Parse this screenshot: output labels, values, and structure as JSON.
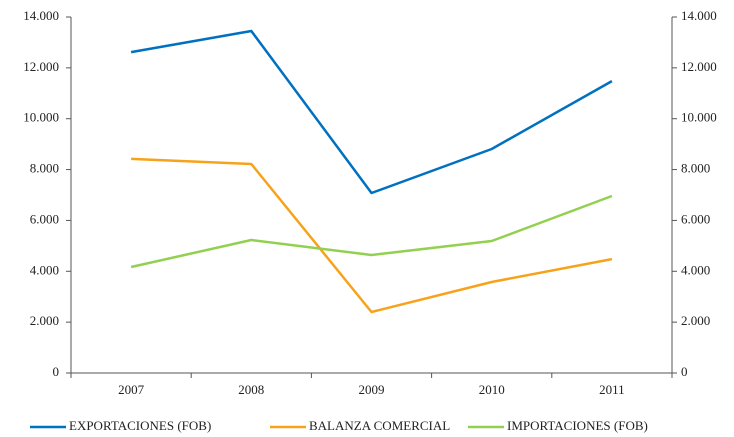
{
  "chart_data": {
    "type": "line",
    "categories": [
      "2007",
      "2008",
      "2009",
      "2010",
      "2011"
    ],
    "series": [
      {
        "name": "EXPORTACIONES (FOB)",
        "color": "#0070c0",
        "values": [
          12620,
          13450,
          7080,
          8810,
          11480
        ]
      },
      {
        "name": "BALANZA COMERCIAL",
        "color": "#f7a21b",
        "values": [
          8420,
          8220,
          2400,
          3580,
          4480
        ]
      },
      {
        "name": "IMPORTACIONES (FOB)",
        "color": "#92d050",
        "values": [
          4170,
          5230,
          4640,
          5190,
          6960
        ]
      }
    ],
    "ylim": [
      0,
      14000
    ],
    "yticks": [
      0,
      {
        "value": 2000,
        "label": "2.000"
      },
      {
        "value": 4000,
        "label": "4.000"
      },
      {
        "value": 6000,
        "label": "6.000"
      },
      {
        "value": 8000,
        "label": "8.000"
      },
      {
        "value": 10000,
        "label": "10.000"
      },
      {
        "value": 12000,
        "label": "12.000"
      },
      {
        "value": 14000,
        "label": "14.000"
      }
    ],
    "y2lim": [
      0,
      14000
    ],
    "y2ticks": [
      0,
      {
        "value": 2000,
        "label": "2.000"
      },
      {
        "value": 4000,
        "label": "4.000"
      },
      {
        "value": 6000,
        "label": "6.000"
      },
      {
        "value": 8000,
        "label": "8.000"
      },
      {
        "value": 10000,
        "label": "10.000"
      },
      {
        "value": 12000,
        "label": "12.000"
      },
      {
        "value": 14000,
        "label": "14.000"
      }
    ],
    "grid": false,
    "legend": "bottom"
  }
}
